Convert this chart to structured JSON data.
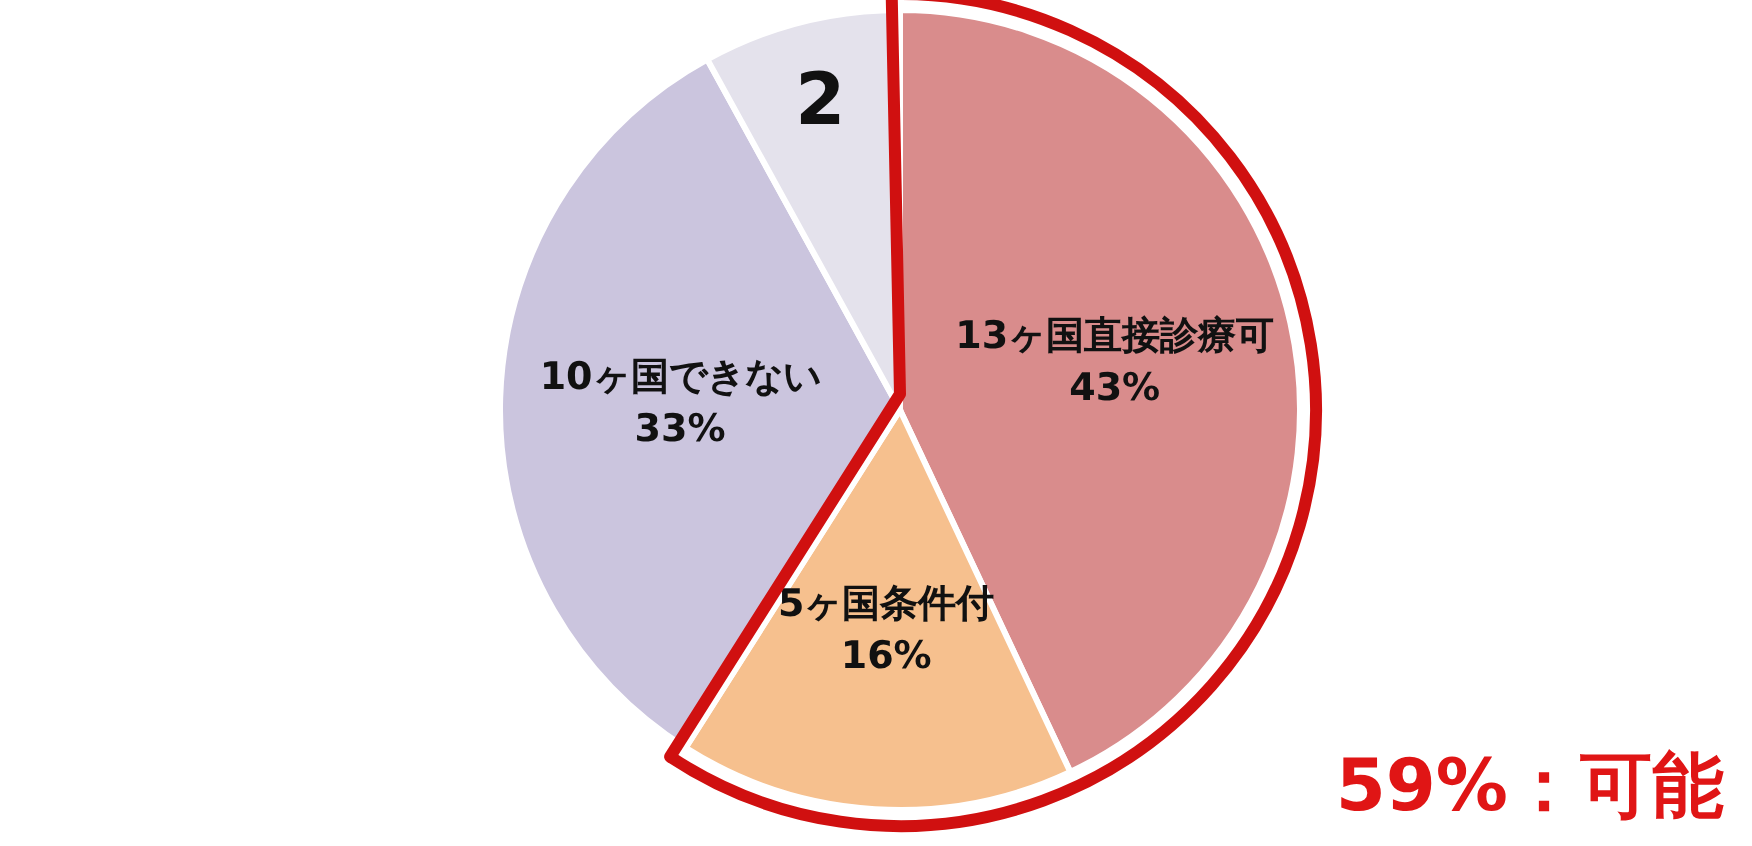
{
  "chart_data": {
    "type": "pie",
    "categories": [
      "13ヶ国直接診療可",
      "5ヶ国条件付",
      "10ヶ国できない",
      "2"
    ],
    "values": [
      43,
      16,
      33,
      8
    ],
    "colors": [
      "#d98c8c",
      "#f6c08e",
      "#cbc5de",
      "#e4e2ec"
    ],
    "value_labels": [
      "43%",
      "16%",
      "33%",
      null
    ],
    "annotations": [
      "59%：可能"
    ]
  }
}
